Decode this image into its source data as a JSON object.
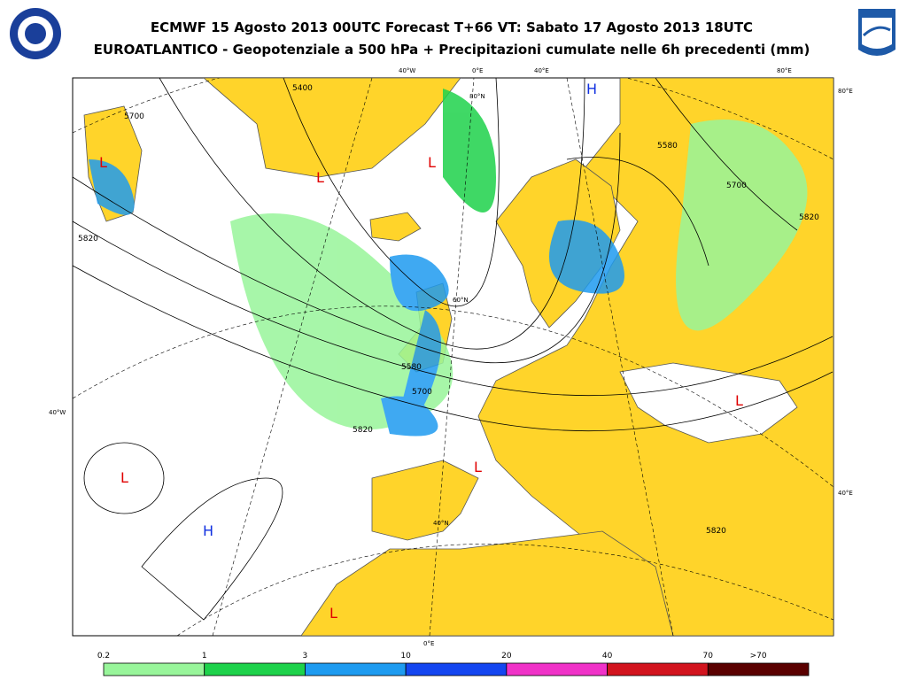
{
  "header": {
    "title_line1": "ECMWF 15 Agosto 2013 00UTC Forecast T+66 VT: Sabato 17 Agosto 2013 18UTC",
    "title_line2": "EUROATLANTICO - Geopotenziale a 500 hPa + Precipitazioni cumulate nelle 6h precedenti (mm)"
  },
  "map": {
    "graticule_labels": [
      "40°W",
      "0°E",
      "40°E",
      "80°E",
      "80°E",
      "40°W",
      "40°E",
      "0°E",
      "80°N",
      "60°N",
      "40°N"
    ],
    "contour_labels": [
      "5700",
      "5820",
      "5400",
      "5580",
      "5700",
      "5820",
      "5580",
      "5700",
      "5820",
      "5820"
    ],
    "pressure_centers": [
      "L",
      "L",
      "L",
      "H",
      "L",
      "L",
      "L",
      "H",
      "L"
    ]
  },
  "legend": {
    "labels": [
      "0.2",
      "1",
      "3",
      "10",
      "20",
      "40",
      "70",
      ">70"
    ],
    "colors": [
      "#98f59a",
      "#1ed24b",
      "#1e9bf0",
      "#1446f0",
      "#f032c8",
      "#d2141e",
      "#5a0000"
    ]
  }
}
